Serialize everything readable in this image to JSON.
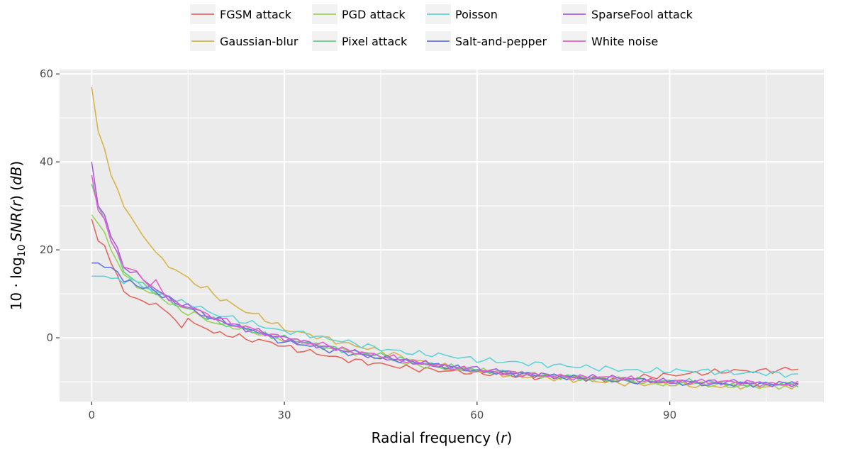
{
  "chart_data": {
    "type": "line",
    "xlabel_prefix": "Radial frequency (",
    "xlabel_var": "r",
    "xlabel_suffix": ")",
    "ylabel_prefix": "10 · log",
    "ylabel_sub": "10",
    "ylabel_mid": "SNR(",
    "ylabel_var": "r",
    "ylabel_mid2": ") (",
    "ylabel_unit": "dB",
    "ylabel_suffix": ")",
    "xlim": [
      -5,
      114
    ],
    "ylim": [
      -14.5,
      61
    ],
    "xticks": [
      0,
      30,
      60,
      90
    ],
    "yticks": [
      0,
      20,
      40,
      60
    ],
    "grid": true,
    "legend_position": "top",
    "series": [
      {
        "name": "FGSM attack",
        "color": "#e2685f",
        "anchors": [
          [
            0,
            27
          ],
          [
            1,
            22
          ],
          [
            2,
            21
          ],
          [
            3,
            17
          ],
          [
            4,
            14
          ],
          [
            5,
            10
          ],
          [
            6,
            10
          ],
          [
            7,
            9
          ],
          [
            8,
            8
          ],
          [
            9,
            7.5
          ],
          [
            10,
            8
          ],
          [
            11,
            7
          ],
          [
            12,
            5
          ],
          [
            13,
            4
          ],
          [
            14,
            3
          ],
          [
            15,
            4
          ],
          [
            16,
            3
          ],
          [
            17,
            3
          ],
          [
            18,
            2
          ],
          [
            19,
            1
          ],
          [
            20,
            1
          ],
          [
            22,
            0.5
          ],
          [
            25,
            -0.5
          ],
          [
            28,
            -1
          ],
          [
            30,
            -2
          ],
          [
            33,
            -3
          ],
          [
            35,
            -3.5
          ],
          [
            38,
            -4.5
          ],
          [
            40,
            -5
          ],
          [
            45,
            -6
          ],
          [
            50,
            -7
          ],
          [
            55,
            -7.5
          ],
          [
            60,
            -8
          ],
          [
            65,
            -8.5
          ],
          [
            70,
            -9
          ],
          [
            75,
            -9
          ],
          [
            80,
            -9.5
          ],
          [
            85,
            -9
          ],
          [
            90,
            -8.5
          ],
          [
            95,
            -8
          ],
          [
            100,
            -7.5
          ],
          [
            105,
            -7.5
          ],
          [
            110,
            -7
          ]
        ]
      },
      {
        "name": "Gaussian-blur",
        "color": "#d7b549",
        "anchors": [
          [
            0,
            57
          ],
          [
            1,
            47
          ],
          [
            2,
            43
          ],
          [
            3,
            37
          ],
          [
            4,
            34
          ],
          [
            5,
            30
          ],
          [
            6,
            28
          ],
          [
            7,
            25
          ],
          [
            8,
            23
          ],
          [
            9,
            22
          ],
          [
            10,
            19
          ],
          [
            12,
            16.5
          ],
          [
            14,
            14.5
          ],
          [
            16,
            12.5
          ],
          [
            18,
            11
          ],
          [
            20,
            9
          ],
          [
            22,
            7.5
          ],
          [
            24,
            6
          ],
          [
            26,
            5
          ],
          [
            28,
            3.5
          ],
          [
            30,
            2
          ],
          [
            33,
            1
          ],
          [
            36,
            0
          ],
          [
            40,
            -1.5
          ],
          [
            45,
            -3
          ],
          [
            50,
            -5
          ],
          [
            55,
            -6.5
          ],
          [
            60,
            -7.5
          ],
          [
            65,
            -8.5
          ],
          [
            70,
            -9
          ],
          [
            75,
            -9.5
          ],
          [
            80,
            -10
          ],
          [
            85,
            -10.5
          ],
          [
            90,
            -10.5
          ],
          [
            95,
            -11
          ],
          [
            100,
            -11
          ],
          [
            105,
            -11
          ],
          [
            110,
            -11
          ]
        ]
      },
      {
        "name": "PGD attack",
        "color": "#9ad15e",
        "anchors": [
          [
            0,
            28
          ],
          [
            1,
            26
          ],
          [
            2,
            24
          ],
          [
            3,
            20
          ],
          [
            4,
            18
          ],
          [
            5,
            14
          ],
          [
            6,
            13
          ],
          [
            7,
            12
          ],
          [
            8,
            11
          ],
          [
            9,
            10
          ],
          [
            10,
            10
          ],
          [
            12,
            8
          ],
          [
            14,
            6
          ],
          [
            16,
            5.5
          ],
          [
            18,
            4
          ],
          [
            20,
            3
          ],
          [
            22,
            2.5
          ],
          [
            24,
            2
          ],
          [
            26,
            1
          ],
          [
            28,
            0
          ],
          [
            30,
            -0.5
          ],
          [
            33,
            -1
          ],
          [
            36,
            -2
          ],
          [
            40,
            -3
          ],
          [
            45,
            -4.5
          ],
          [
            50,
            -6
          ],
          [
            55,
            -7
          ],
          [
            60,
            -7.5
          ],
          [
            65,
            -8
          ],
          [
            70,
            -8.5
          ],
          [
            75,
            -9
          ],
          [
            80,
            -9.5
          ],
          [
            85,
            -10
          ],
          [
            90,
            -10.5
          ],
          [
            95,
            -10.5
          ],
          [
            100,
            -11
          ],
          [
            105,
            -11
          ],
          [
            110,
            -11
          ]
        ]
      },
      {
        "name": "Pixel attack",
        "color": "#5fd07f",
        "anchors": [
          [
            0,
            35
          ],
          [
            1,
            30
          ],
          [
            2,
            27
          ],
          [
            3,
            22
          ],
          [
            4,
            19
          ],
          [
            5,
            15
          ],
          [
            6,
            14
          ],
          [
            7,
            13
          ],
          [
            8,
            12
          ],
          [
            9,
            11
          ],
          [
            10,
            10.5
          ],
          [
            12,
            8.5
          ],
          [
            14,
            7
          ],
          [
            16,
            6
          ],
          [
            18,
            4.5
          ],
          [
            20,
            3.5
          ],
          [
            22,
            2.5
          ],
          [
            24,
            2
          ],
          [
            26,
            1
          ],
          [
            28,
            0.5
          ],
          [
            30,
            0
          ],
          [
            33,
            -1
          ],
          [
            36,
            -2
          ],
          [
            40,
            -3
          ],
          [
            45,
            -4
          ],
          [
            50,
            -5.5
          ],
          [
            55,
            -6.5
          ],
          [
            60,
            -7.5
          ],
          [
            65,
            -8
          ],
          [
            70,
            -8.5
          ],
          [
            75,
            -9
          ],
          [
            80,
            -9.5
          ],
          [
            85,
            -9.5
          ],
          [
            90,
            -10
          ],
          [
            95,
            -10
          ],
          [
            100,
            -10.5
          ],
          [
            105,
            -10.5
          ],
          [
            110,
            -10.5
          ]
        ]
      },
      {
        "name": "Poisson",
        "color": "#5fd3d8",
        "anchors": [
          [
            0,
            14
          ],
          [
            1,
            14
          ],
          [
            2,
            14
          ],
          [
            3,
            13.5
          ],
          [
            4,
            13.5
          ],
          [
            5,
            13
          ],
          [
            6,
            13
          ],
          [
            7,
            12.5
          ],
          [
            8,
            12
          ],
          [
            9,
            11
          ],
          [
            10,
            10.5
          ],
          [
            12,
            9
          ],
          [
            14,
            8
          ],
          [
            16,
            7.5
          ],
          [
            18,
            6
          ],
          [
            20,
            5
          ],
          [
            22,
            4.5
          ],
          [
            24,
            3.5
          ],
          [
            26,
            3
          ],
          [
            28,
            2
          ],
          [
            30,
            1.5
          ],
          [
            33,
            1
          ],
          [
            36,
            0
          ],
          [
            40,
            -1
          ],
          [
            45,
            -2.5
          ],
          [
            50,
            -3.5
          ],
          [
            55,
            -4
          ],
          [
            60,
            -5
          ],
          [
            65,
            -5.5
          ],
          [
            70,
            -6
          ],
          [
            75,
            -6.5
          ],
          [
            80,
            -7
          ],
          [
            85,
            -7.5
          ],
          [
            90,
            -7.5
          ],
          [
            95,
            -7.5
          ],
          [
            100,
            -8
          ],
          [
            105,
            -8
          ],
          [
            110,
            -8.5
          ]
        ]
      },
      {
        "name": "Salt-and-pepper",
        "color": "#6079e0",
        "anchors": [
          [
            0,
            17
          ],
          [
            1,
            17
          ],
          [
            2,
            16
          ],
          [
            3,
            16
          ],
          [
            4,
            15
          ],
          [
            5,
            12.5
          ],
          [
            6,
            13
          ],
          [
            7,
            12
          ],
          [
            8,
            11.5
          ],
          [
            9,
            11
          ],
          [
            10,
            10.5
          ],
          [
            12,
            9
          ],
          [
            14,
            7.5
          ],
          [
            16,
            6.5
          ],
          [
            18,
            5
          ],
          [
            20,
            4
          ],
          [
            22,
            3
          ],
          [
            24,
            2
          ],
          [
            26,
            1.5
          ],
          [
            28,
            0
          ],
          [
            30,
            -1
          ],
          [
            33,
            -1.5
          ],
          [
            36,
            -2.5
          ],
          [
            40,
            -3.5
          ],
          [
            45,
            -4.5
          ],
          [
            50,
            -5.5
          ],
          [
            55,
            -6.5
          ],
          [
            60,
            -7.5
          ],
          [
            65,
            -8
          ],
          [
            70,
            -8.5
          ],
          [
            75,
            -9
          ],
          [
            80,
            -9.5
          ],
          [
            85,
            -10
          ],
          [
            90,
            -10
          ],
          [
            95,
            -10.5
          ],
          [
            100,
            -10.5
          ],
          [
            105,
            -10.5
          ],
          [
            110,
            -10.5
          ]
        ]
      },
      {
        "name": "SparseFool attack",
        "color": "#a75ee0",
        "anchors": [
          [
            0,
            40
          ],
          [
            1,
            30
          ],
          [
            2,
            28
          ],
          [
            3,
            23
          ],
          [
            4,
            20
          ],
          [
            5,
            16
          ],
          [
            6,
            15.5
          ],
          [
            7,
            14.5
          ],
          [
            8,
            13
          ],
          [
            9,
            12.5
          ],
          [
            10,
            11
          ],
          [
            12,
            9
          ],
          [
            14,
            7.5
          ],
          [
            16,
            6.5
          ],
          [
            18,
            4.5
          ],
          [
            20,
            4
          ],
          [
            22,
            3
          ],
          [
            24,
            2
          ],
          [
            26,
            1.5
          ],
          [
            28,
            0.5
          ],
          [
            30,
            0
          ],
          [
            33,
            -1
          ],
          [
            36,
            -2
          ],
          [
            40,
            -3
          ],
          [
            45,
            -4.5
          ],
          [
            50,
            -5.5
          ],
          [
            55,
            -6.5
          ],
          [
            60,
            -7
          ],
          [
            65,
            -8
          ],
          [
            70,
            -8.5
          ],
          [
            75,
            -9
          ],
          [
            80,
            -9
          ],
          [
            85,
            -9.5
          ],
          [
            90,
            -10
          ],
          [
            95,
            -10
          ],
          [
            100,
            -10
          ],
          [
            105,
            -10.5
          ],
          [
            110,
            -10.5
          ]
        ]
      },
      {
        "name": "White noise",
        "color": "#e25fcd",
        "anchors": [
          [
            0,
            37
          ],
          [
            1,
            29
          ],
          [
            2,
            27
          ],
          [
            3,
            22
          ],
          [
            4,
            20
          ],
          [
            5,
            16
          ],
          [
            6,
            15.5
          ],
          [
            7,
            15
          ],
          [
            8,
            13.5
          ],
          [
            9,
            12
          ],
          [
            10,
            12.5
          ],
          [
            12,
            9
          ],
          [
            14,
            7
          ],
          [
            16,
            7
          ],
          [
            18,
            5
          ],
          [
            20,
            4.5
          ],
          [
            22,
            3
          ],
          [
            24,
            2.5
          ],
          [
            26,
            1.5
          ],
          [
            28,
            0.5
          ],
          [
            30,
            0
          ],
          [
            33,
            -1
          ],
          [
            36,
            -1.5
          ],
          [
            40,
            -3
          ],
          [
            45,
            -4
          ],
          [
            50,
            -5.5
          ],
          [
            55,
            -6.5
          ],
          [
            60,
            -7.5
          ],
          [
            65,
            -8
          ],
          [
            70,
            -8.5
          ],
          [
            75,
            -9
          ],
          [
            80,
            -9
          ],
          [
            85,
            -9.5
          ],
          [
            90,
            -10
          ],
          [
            95,
            -10
          ],
          [
            100,
            -10
          ],
          [
            105,
            -10.5
          ],
          [
            110,
            -10.5
          ]
        ]
      }
    ]
  }
}
